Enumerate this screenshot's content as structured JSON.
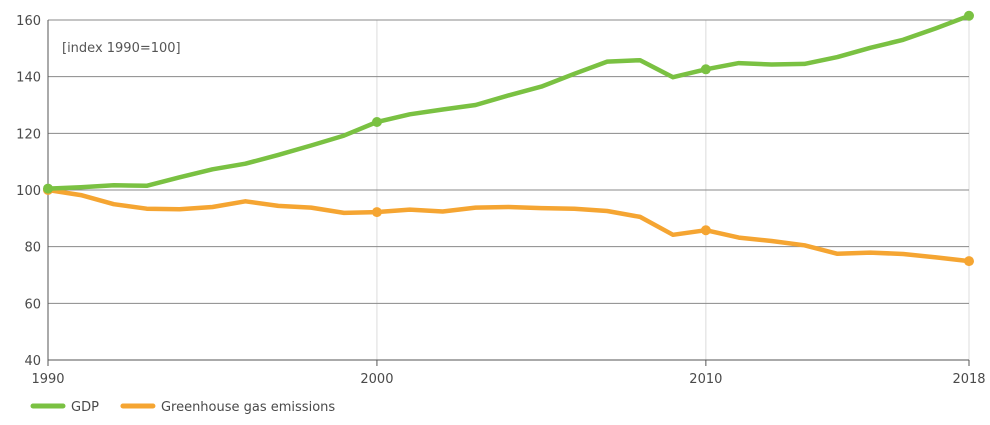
{
  "chart_data": {
    "type": "line",
    "title": "",
    "unit_label": "[index 1990=100]",
    "xlabel": "",
    "ylabel": "",
    "xlim": [
      1990,
      2018
    ],
    "ylim": [
      40,
      160
    ],
    "x_ticks": [
      1990,
      2000,
      2010,
      2018
    ],
    "y_ticks": [
      40,
      60,
      80,
      100,
      120,
      140,
      160
    ],
    "grid": {
      "horizontal": true,
      "vertical": true
    },
    "legend_position": "bottom-left",
    "x": [
      1990,
      1991,
      1992,
      1993,
      1994,
      1995,
      1996,
      1997,
      1998,
      1999,
      2000,
      2001,
      2002,
      2003,
      2004,
      2005,
      2006,
      2007,
      2008,
      2009,
      2010,
      2011,
      2012,
      2013,
      2014,
      2015,
      2016,
      2017,
      2018
    ],
    "series": [
      {
        "name": "GDP",
        "color": "#7ac142",
        "marked_years": [
          1990,
          2000,
          2010,
          2018
        ],
        "values": [
          100.5,
          101,
          101.7,
          101.5,
          104.5,
          107.3,
          109.3,
          112.4,
          115.7,
          119.2,
          124,
          126.7,
          128.4,
          130,
          133.4,
          136.5,
          141,
          145.3,
          145.8,
          139.8,
          142.6,
          144.8,
          144.3,
          144.5,
          146.9,
          150.2,
          153,
          157.1,
          161.5
        ]
      },
      {
        "name": "Greenhouse gas emissions",
        "color": "#f5a532",
        "marked_years": [
          1990,
          2000,
          2010,
          2018
        ],
        "values": [
          100,
          98.2,
          95,
          93.4,
          93.2,
          94,
          96,
          94.4,
          93.8,
          91.9,
          92.2,
          93.1,
          92.4,
          93.8,
          94,
          93.6,
          93.4,
          92.6,
          90.5,
          84.2,
          85.8,
          83.2,
          82,
          80.5,
          77.5,
          77.9,
          77.4,
          76.2,
          74.9
        ]
      }
    ]
  }
}
